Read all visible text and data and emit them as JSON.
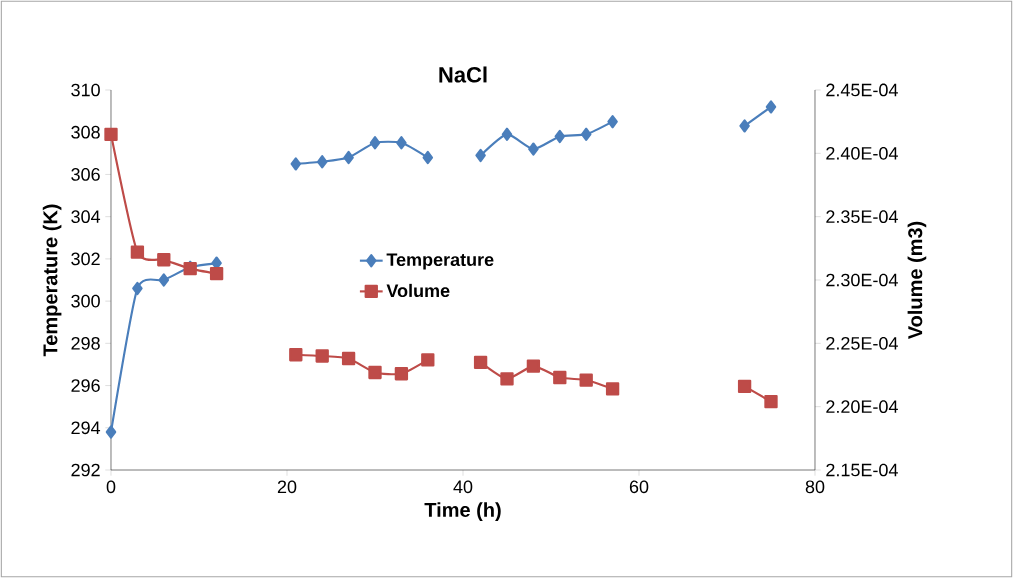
{
  "chart_data": {
    "type": "line",
    "title": "NaCl",
    "xlabel": "Time (h)",
    "ylabel": "Temperature (K)",
    "y2label": "Volume (m3)",
    "x": [
      0,
      3,
      6,
      9,
      12,
      null,
      21,
      24,
      27,
      30,
      33,
      36,
      null,
      42,
      45,
      48,
      51,
      54,
      57,
      null,
      72,
      75
    ],
    "series": [
      {
        "name": "Temperature",
        "color": "#4a7ebb",
        "marker": "diamond",
        "values": [
          293.8,
          300.6,
          301.0,
          301.6,
          301.8,
          null,
          306.5,
          306.6,
          306.8,
          307.5,
          307.5,
          306.8,
          null,
          306.9,
          307.9,
          307.2,
          307.8,
          307.9,
          308.5,
          null,
          308.3,
          309.2
        ]
      },
      {
        "name": "Volume",
        "color": "#be4b48",
        "marker": "square",
        "axis": "y2",
        "values": [
          0.0002415,
          0.0002322,
          0.0002316,
          0.0002309,
          0.0002305,
          null,
          0.0002241,
          0.000224,
          0.0002238,
          0.0002227,
          0.0002226,
          0.0002237,
          null,
          0.0002235,
          0.0002222,
          0.0002232,
          0.0002223,
          0.0002221,
          0.0002214,
          null,
          0.0002216,
          0.0002204
        ]
      }
    ],
    "xlim": [
      0,
      80
    ],
    "xticks": [
      0,
      20,
      40,
      60,
      80
    ],
    "ylim": [
      292,
      310
    ],
    "yticks": [
      292,
      294,
      296,
      298,
      300,
      302,
      304,
      306,
      308,
      310
    ],
    "y2lim": [
      0.000215,
      0.000245
    ],
    "y2ticks": [
      {
        "value": 0.000215,
        "label": "2.15E-04"
      },
      {
        "value": 0.00022,
        "label": "2.20E-04"
      },
      {
        "value": 0.000225,
        "label": "2.25E-04"
      },
      {
        "value": 0.00023,
        "label": "2.30E-04"
      },
      {
        "value": 0.000235,
        "label": "2.35E-04"
      },
      {
        "value": 0.00024,
        "label": "2.40E-04"
      },
      {
        "value": 0.000245,
        "label": "2.45E-04"
      }
    ],
    "legend": "center"
  }
}
